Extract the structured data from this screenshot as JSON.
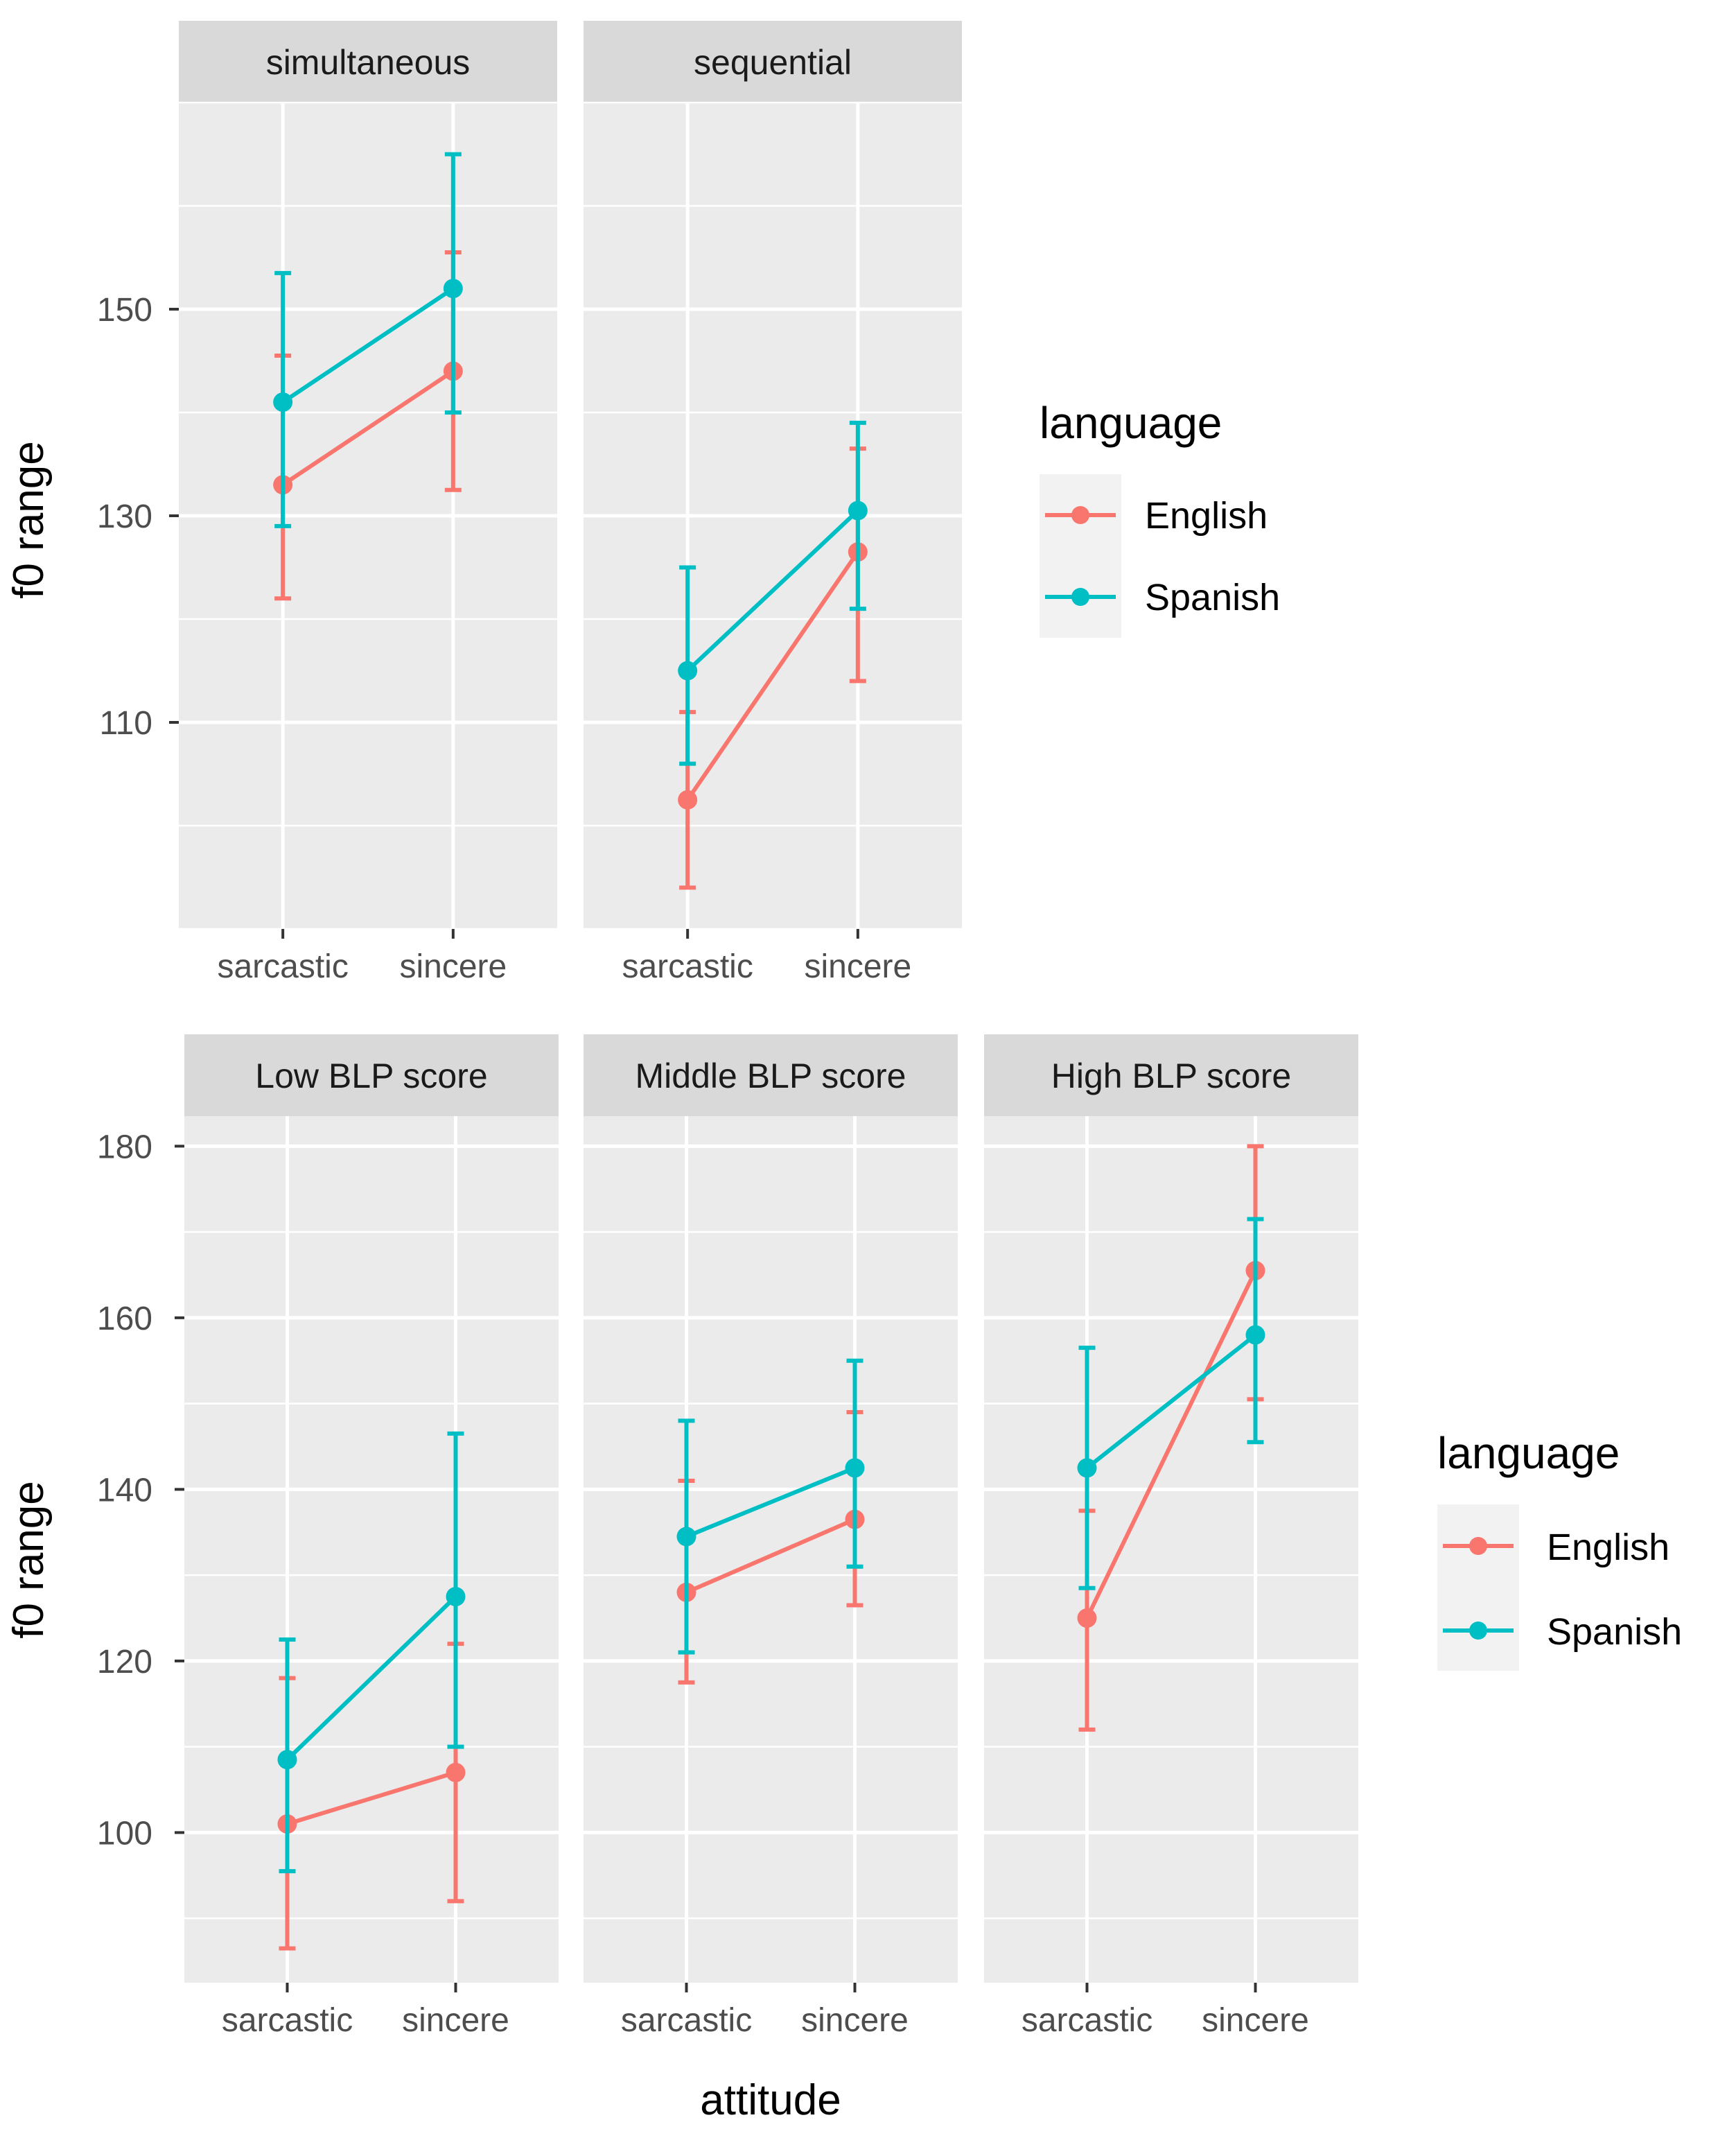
{
  "colors": {
    "English": "#F8766D",
    "Spanish": "#00BFC4",
    "panel_bg": "#EBEBEB",
    "strip_bg": "#D9D9D9",
    "grid": "#FFFFFF"
  },
  "chart_data": [
    {
      "type": "line",
      "x_label": "",
      "y_label": "f0 range",
      "y_ticks": [
        110,
        130,
        150
      ],
      "y_range": [
        90,
        170
      ],
      "categories": [
        "sarcastic",
        "sincere"
      ],
      "legend": {
        "title": "language",
        "entries": [
          "English",
          "Spanish"
        ],
        "position": "right"
      },
      "panels": [
        {
          "title": "simultaneous",
          "series": [
            {
              "name": "English",
              "values": [
                133,
                144
              ],
              "lower": [
                122,
                132.5
              ],
              "upper": [
                145.5,
                155.5
              ]
            },
            {
              "name": "Spanish",
              "values": [
                141,
                152
              ],
              "lower": [
                129,
                140
              ],
              "upper": [
                153.5,
                165
              ]
            }
          ]
        },
        {
          "title": "sequential",
          "series": [
            {
              "name": "English",
              "values": [
                102.5,
                126.5
              ],
              "lower": [
                94,
                114
              ],
              "upper": [
                111,
                136.5
              ]
            },
            {
              "name": "Spanish",
              "values": [
                115,
                130.5
              ],
              "lower": [
                106,
                121
              ],
              "upper": [
                125,
                139
              ]
            }
          ]
        }
      ]
    },
    {
      "type": "line",
      "x_label": "attitude",
      "y_label": "f0 range",
      "y_ticks": [
        100,
        120,
        140,
        160,
        180
      ],
      "y_range": [
        82.5,
        183.5
      ],
      "categories": [
        "sarcastic",
        "sincere"
      ],
      "legend": {
        "title": "language",
        "entries": [
          "English",
          "Spanish"
        ],
        "position": "right"
      },
      "panels": [
        {
          "title": "Low BLP score",
          "series": [
            {
              "name": "English",
              "values": [
                101,
                107
              ],
              "lower": [
                86.5,
                92
              ],
              "upper": [
                118,
                122
              ]
            },
            {
              "name": "Spanish",
              "values": [
                108.5,
                127.5
              ],
              "lower": [
                95.5,
                110
              ],
              "upper": [
                122.5,
                146.5
              ]
            }
          ]
        },
        {
          "title": "Middle BLP score",
          "series": [
            {
              "name": "English",
              "values": [
                128,
                136.5
              ],
              "lower": [
                117.5,
                126.5
              ],
              "upper": [
                141,
                149
              ]
            },
            {
              "name": "Spanish",
              "values": [
                134.5,
                142.5
              ],
              "lower": [
                121,
                131
              ],
              "upper": [
                148,
                155
              ]
            }
          ]
        },
        {
          "title": "High BLP score",
          "series": [
            {
              "name": "English",
              "values": [
                125,
                165.5
              ],
              "lower": [
                112,
                150.5
              ],
              "upper": [
                137.5,
                180
              ]
            },
            {
              "name": "Spanish",
              "values": [
                142.5,
                158
              ],
              "lower": [
                128.5,
                145.5
              ],
              "upper": [
                156.5,
                171.5
              ]
            }
          ]
        }
      ]
    }
  ]
}
